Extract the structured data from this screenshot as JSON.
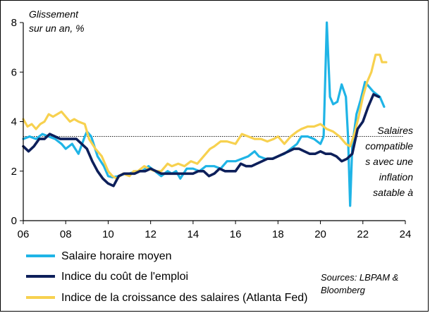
{
  "chart_data": {
    "type": "line",
    "ylabel": "Glissement sur un an, %",
    "ylabel_lines": [
      "Glissement",
      "sur un an, %"
    ],
    "xlim": [
      2006,
      2024
    ],
    "ylim": [
      0,
      8
    ],
    "x_ticks": [
      2006,
      2008,
      2010,
      2012,
      2014,
      2016,
      2018,
      2020,
      2022,
      2024
    ],
    "x_tick_labels": [
      "06",
      "08",
      "10",
      "12",
      "14",
      "16",
      "18",
      "20",
      "22",
      "24"
    ],
    "y_ticks": [
      0,
      2,
      4,
      6,
      8
    ],
    "y_tick_labels": [
      "0",
      "2",
      "4",
      "6",
      "8"
    ],
    "grid": false,
    "legend_position": "bottom",
    "reference_line": {
      "y": 3.4,
      "style": "dotted",
      "label_lines": [
        "Salaires",
        "compatible",
        "s avec une",
        "inflation",
        "satable à"
      ]
    },
    "source_lines": [
      "Sources: LBPAM &",
      "Bloomberg"
    ],
    "series": [
      {
        "name": "Salaire horaire moyen",
        "color": "#1fb4e6",
        "width": 3.2,
        "points": [
          [
            2006.0,
            3.3
          ],
          [
            2006.3,
            3.4
          ],
          [
            2006.6,
            3.3
          ],
          [
            2006.9,
            3.5
          ],
          [
            2007.2,
            3.4
          ],
          [
            2007.5,
            3.3
          ],
          [
            2007.8,
            3.1
          ],
          [
            2008.0,
            2.9
          ],
          [
            2008.3,
            3.1
          ],
          [
            2008.6,
            2.7
          ],
          [
            2008.9,
            3.4
          ],
          [
            2009.0,
            3.6
          ],
          [
            2009.2,
            3.4
          ],
          [
            2009.5,
            2.6
          ],
          [
            2009.8,
            2.2
          ],
          [
            2010.0,
            1.8
          ],
          [
            2010.2,
            1.75
          ],
          [
            2010.5,
            1.8
          ],
          [
            2010.8,
            1.9
          ],
          [
            2011.0,
            1.9
          ],
          [
            2011.3,
            2.0
          ],
          [
            2011.6,
            2.0
          ],
          [
            2011.9,
            2.2
          ],
          [
            2012.2,
            2.0
          ],
          [
            2012.5,
            1.8
          ],
          [
            2012.8,
            2.0
          ],
          [
            2013.0,
            1.9
          ],
          [
            2013.2,
            2.0
          ],
          [
            2013.4,
            1.7
          ],
          [
            2013.7,
            2.1
          ],
          [
            2014.0,
            2.1
          ],
          [
            2014.3,
            2.0
          ],
          [
            2014.6,
            2.2
          ],
          [
            2015.0,
            2.2
          ],
          [
            2015.3,
            2.1
          ],
          [
            2015.6,
            2.4
          ],
          [
            2016.0,
            2.4
          ],
          [
            2016.3,
            2.5
          ],
          [
            2016.6,
            2.6
          ],
          [
            2016.9,
            2.8
          ],
          [
            2017.1,
            2.6
          ],
          [
            2017.4,
            2.5
          ],
          [
            2017.7,
            2.5
          ],
          [
            2018.0,
            2.6
          ],
          [
            2018.3,
            2.7
          ],
          [
            2018.6,
            2.9
          ],
          [
            2018.9,
            3.1
          ],
          [
            2019.1,
            3.4
          ],
          [
            2019.4,
            3.4
          ],
          [
            2019.7,
            3.3
          ],
          [
            2020.0,
            3.1
          ],
          [
            2020.15,
            3.4
          ],
          [
            2020.3,
            8.0
          ],
          [
            2020.45,
            5.0
          ],
          [
            2020.6,
            4.7
          ],
          [
            2020.8,
            4.8
          ],
          [
            2021.0,
            5.5
          ],
          [
            2021.2,
            5.0
          ],
          [
            2021.3,
            3.4
          ],
          [
            2021.4,
            0.6
          ],
          [
            2021.5,
            3.0
          ],
          [
            2021.7,
            4.3
          ],
          [
            2021.9,
            4.9
          ],
          [
            2022.1,
            5.6
          ],
          [
            2022.3,
            5.4
          ],
          [
            2022.5,
            5.2
          ],
          [
            2022.8,
            5.0
          ],
          [
            2023.0,
            4.6
          ]
        ]
      },
      {
        "name": "Indice du coût de l'emploi",
        "color": "#0d1f5a",
        "width": 3.6,
        "points": [
          [
            2006.0,
            3.0
          ],
          [
            2006.25,
            2.8
          ],
          [
            2006.5,
            3.0
          ],
          [
            2006.75,
            3.3
          ],
          [
            2007.0,
            3.3
          ],
          [
            2007.25,
            3.5
          ],
          [
            2007.5,
            3.4
          ],
          [
            2007.75,
            3.3
          ],
          [
            2008.0,
            3.3
          ],
          [
            2008.25,
            3.3
          ],
          [
            2008.5,
            3.3
          ],
          [
            2008.75,
            3.1
          ],
          [
            2009.0,
            2.9
          ],
          [
            2009.25,
            2.4
          ],
          [
            2009.5,
            2.0
          ],
          [
            2009.75,
            1.7
          ],
          [
            2010.0,
            1.5
          ],
          [
            2010.25,
            1.4
          ],
          [
            2010.5,
            1.8
          ],
          [
            2010.75,
            1.9
          ],
          [
            2011.0,
            1.9
          ],
          [
            2011.25,
            1.9
          ],
          [
            2011.5,
            2.0
          ],
          [
            2011.75,
            2.0
          ],
          [
            2012.0,
            2.1
          ],
          [
            2012.25,
            2.0
          ],
          [
            2012.5,
            1.9
          ],
          [
            2012.75,
            1.9
          ],
          [
            2013.0,
            1.9
          ],
          [
            2013.25,
            1.9
          ],
          [
            2013.5,
            1.9
          ],
          [
            2013.75,
            1.9
          ],
          [
            2014.0,
            1.9
          ],
          [
            2014.25,
            2.0
          ],
          [
            2014.5,
            2.0
          ],
          [
            2014.75,
            1.8
          ],
          [
            2015.0,
            1.9
          ],
          [
            2015.25,
            2.1
          ],
          [
            2015.5,
            2.0
          ],
          [
            2015.75,
            2.0
          ],
          [
            2016.0,
            2.0
          ],
          [
            2016.25,
            2.3
          ],
          [
            2016.5,
            2.2
          ],
          [
            2016.75,
            2.2
          ],
          [
            2017.0,
            2.3
          ],
          [
            2017.25,
            2.4
          ],
          [
            2017.5,
            2.5
          ],
          [
            2017.75,
            2.5
          ],
          [
            2018.0,
            2.6
          ],
          [
            2018.25,
            2.7
          ],
          [
            2018.5,
            2.8
          ],
          [
            2018.75,
            2.9
          ],
          [
            2019.0,
            2.9
          ],
          [
            2019.25,
            2.8
          ],
          [
            2019.5,
            2.7
          ],
          [
            2019.75,
            2.7
          ],
          [
            2020.0,
            2.8
          ],
          [
            2020.25,
            2.7
          ],
          [
            2020.5,
            2.7
          ],
          [
            2020.75,
            2.6
          ],
          [
            2021.0,
            2.4
          ],
          [
            2021.25,
            2.5
          ],
          [
            2021.5,
            2.7
          ],
          [
            2021.75,
            3.7
          ],
          [
            2022.0,
            4.0
          ],
          [
            2022.25,
            4.6
          ],
          [
            2022.5,
            5.1
          ],
          [
            2022.75,
            5.0
          ]
        ]
      },
      {
        "name": "Indice de la croissance des salaires (Atlanta Fed)",
        "color": "#f7d14f",
        "width": 3.2,
        "points": [
          [
            2006.0,
            4.1
          ],
          [
            2006.2,
            3.8
          ],
          [
            2006.4,
            3.9
          ],
          [
            2006.6,
            3.7
          ],
          [
            2006.8,
            3.9
          ],
          [
            2007.0,
            4.0
          ],
          [
            2007.2,
            4.3
          ],
          [
            2007.4,
            4.2
          ],
          [
            2007.6,
            4.3
          ],
          [
            2007.8,
            4.4
          ],
          [
            2008.0,
            4.2
          ],
          [
            2008.2,
            4.0
          ],
          [
            2008.4,
            4.1
          ],
          [
            2008.6,
            4.0
          ],
          [
            2008.9,
            3.9
          ],
          [
            2009.1,
            3.3
          ],
          [
            2009.4,
            2.9
          ],
          [
            2009.7,
            2.6
          ],
          [
            2010.0,
            2.0
          ],
          [
            2010.2,
            1.8
          ],
          [
            2010.4,
            1.7
          ],
          [
            2010.7,
            1.9
          ],
          [
            2011.0,
            1.8
          ],
          [
            2011.2,
            2.0
          ],
          [
            2011.4,
            2.0
          ],
          [
            2011.7,
            2.2
          ],
          [
            2011.9,
            2.1
          ],
          [
            2012.2,
            2.0
          ],
          [
            2012.5,
            2.0
          ],
          [
            2012.8,
            2.3
          ],
          [
            2013.0,
            2.2
          ],
          [
            2013.3,
            2.3
          ],
          [
            2013.6,
            2.2
          ],
          [
            2013.9,
            2.4
          ],
          [
            2014.2,
            2.3
          ],
          [
            2014.5,
            2.6
          ],
          [
            2014.8,
            2.9
          ],
          [
            2015.0,
            3.0
          ],
          [
            2015.3,
            3.2
          ],
          [
            2015.6,
            3.2
          ],
          [
            2016.0,
            3.1
          ],
          [
            2016.3,
            3.5
          ],
          [
            2016.6,
            3.4
          ],
          [
            2016.9,
            3.3
          ],
          [
            2017.2,
            3.3
          ],
          [
            2017.5,
            3.2
          ],
          [
            2017.8,
            3.3
          ],
          [
            2018.0,
            3.4
          ],
          [
            2018.3,
            3.1
          ],
          [
            2018.6,
            3.4
          ],
          [
            2018.9,
            3.6
          ],
          [
            2019.1,
            3.7
          ],
          [
            2019.4,
            3.8
          ],
          [
            2019.7,
            3.8
          ],
          [
            2020.0,
            3.9
          ],
          [
            2020.3,
            3.7
          ],
          [
            2020.6,
            3.6
          ],
          [
            2020.9,
            3.4
          ],
          [
            2021.2,
            3.1
          ],
          [
            2021.4,
            3.0
          ],
          [
            2021.6,
            3.5
          ],
          [
            2021.8,
            4.2
          ],
          [
            2022.0,
            5.0
          ],
          [
            2022.2,
            5.6
          ],
          [
            2022.4,
            6.0
          ],
          [
            2022.6,
            6.7
          ],
          [
            2022.8,
            6.7
          ],
          [
            2022.9,
            6.4
          ],
          [
            2023.1,
            6.4
          ]
        ]
      }
    ]
  }
}
